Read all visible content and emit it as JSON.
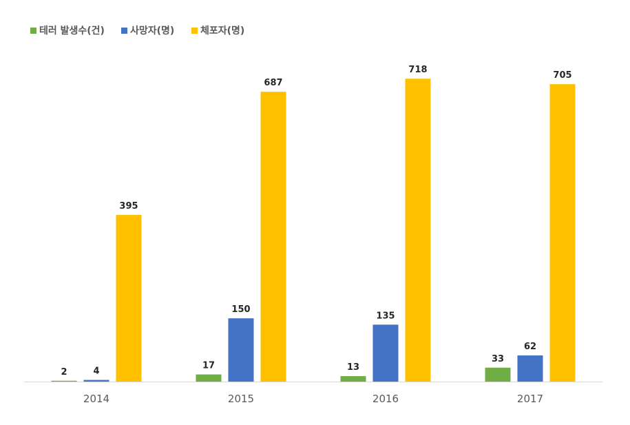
{
  "chart_data": {
    "type": "bar",
    "title": "",
    "xlabel": "",
    "ylabel": "",
    "categories": [
      "2014",
      "2015",
      "2016",
      "2017"
    ],
    "series": [
      {
        "name": "테러 발생수(건)",
        "color": "#70ad47",
        "values": [
          2,
          17,
          13,
          33
        ]
      },
      {
        "name": "사망자(명)",
        "color": "#4472c4",
        "values": [
          4,
          150,
          135,
          62
        ]
      },
      {
        "name": "체포자(명)",
        "color": "#ffc000",
        "values": [
          395,
          687,
          718,
          705
        ]
      }
    ],
    "ylim": [
      0,
      720
    ],
    "grid": false,
    "y_axis_shown": false,
    "data_labels": true,
    "legend_position": "top-left",
    "axis_color": "#d9d9d9"
  }
}
